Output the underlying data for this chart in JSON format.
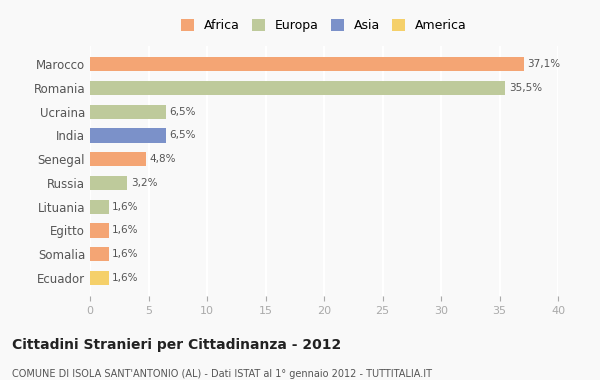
{
  "categories": [
    "Marocco",
    "Romania",
    "Ucraina",
    "India",
    "Senegal",
    "Russia",
    "Lituania",
    "Egitto",
    "Somalia",
    "Ecuador"
  ],
  "values": [
    37.1,
    35.5,
    6.5,
    6.5,
    4.8,
    3.2,
    1.6,
    1.6,
    1.6,
    1.6
  ],
  "labels": [
    "37,1%",
    "35,5%",
    "6,5%",
    "6,5%",
    "4,8%",
    "3,2%",
    "1,6%",
    "1,6%",
    "1,6%",
    "1,6%"
  ],
  "colors": [
    "#F4A574",
    "#BECA9B",
    "#BECA9B",
    "#7B91C9",
    "#F4A574",
    "#BECA9B",
    "#BECA9B",
    "#F4A574",
    "#F4A574",
    "#F5D06A"
  ],
  "legend": [
    {
      "label": "Africa",
      "color": "#F4A574"
    },
    {
      "label": "Europa",
      "color": "#BECA9B"
    },
    {
      "label": "Asia",
      "color": "#7B91C9"
    },
    {
      "label": "America",
      "color": "#F5D06A"
    }
  ],
  "title": "Cittadini Stranieri per Cittadinanza - 2012",
  "subtitle": "COMUNE DI ISOLA SANT'ANTONIO (AL) - Dati ISTAT al 1° gennaio 2012 - TUTTITALIA.IT",
  "xlim": [
    0,
    40
  ],
  "xticks": [
    0,
    5,
    10,
    15,
    20,
    25,
    30,
    35,
    40
  ],
  "bg_color": "#f9f9f9",
  "grid_color": "#ffffff",
  "bar_height": 0.6
}
